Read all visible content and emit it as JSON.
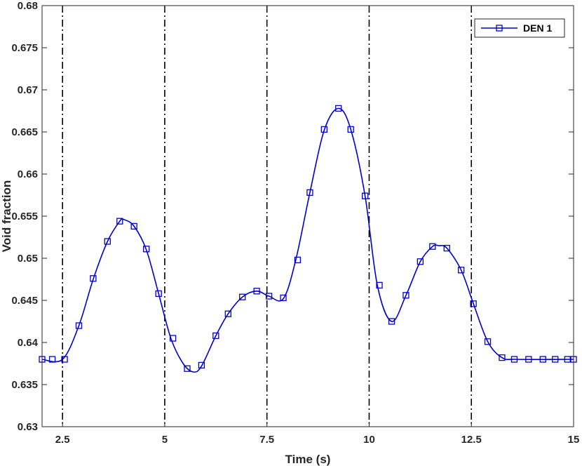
{
  "chart_data": {
    "type": "line",
    "title": "",
    "xlabel": "Time (s)",
    "ylabel": "Void fraction",
    "xlim": [
      2,
      15
    ],
    "ylim": [
      0.63,
      0.68
    ],
    "xticks": [
      2.5,
      5,
      7.5,
      10,
      12.5,
      15
    ],
    "xtick_labels": [
      "2.5",
      "5",
      "7.5",
      "10",
      "12.5",
      "15"
    ],
    "yticks": [
      0.63,
      0.635,
      0.64,
      0.645,
      0.65,
      0.655,
      0.66,
      0.665,
      0.67,
      0.675,
      0.68
    ],
    "ytick_labels": [
      "0.63",
      "0.635",
      "0.64",
      "0.645",
      "0.65",
      "0.655",
      "0.66",
      "0.665",
      "0.67",
      "0.675",
      "0.68"
    ],
    "grid": false,
    "legend_position": "top-right",
    "vertical_lines": {
      "x": [
        2.5,
        5,
        7.5,
        10,
        12.5
      ],
      "style": "dash-dot",
      "color": "#000000"
    },
    "series": [
      {
        "name": "DEN 1",
        "color": "#0000cc",
        "marker": "square",
        "curve": [
          [
            2.0,
            0.638
          ],
          [
            2.5,
            0.638
          ],
          [
            2.9,
            0.642
          ],
          [
            3.25,
            0.6475
          ],
          [
            3.6,
            0.652
          ],
          [
            3.9,
            0.6544
          ],
          [
            4.0,
            0.6546
          ],
          [
            4.25,
            0.6538
          ],
          [
            4.55,
            0.651
          ],
          [
            4.85,
            0.6458
          ],
          [
            5.15,
            0.6405
          ],
          [
            5.45,
            0.6375
          ],
          [
            5.7,
            0.6365
          ],
          [
            5.9,
            0.6372
          ],
          [
            6.25,
            0.6408
          ],
          [
            6.55,
            0.6434
          ],
          [
            6.9,
            0.6454
          ],
          [
            7.25,
            0.6461
          ],
          [
            7.55,
            0.6455
          ],
          [
            7.9,
            0.6452
          ],
          [
            8.2,
            0.6497
          ],
          [
            8.55,
            0.6578
          ],
          [
            8.9,
            0.6652
          ],
          [
            9.25,
            0.6678
          ],
          [
            9.55,
            0.6653
          ],
          [
            9.9,
            0.6574
          ],
          [
            10.2,
            0.6468
          ],
          [
            10.55,
            0.6425
          ],
          [
            10.9,
            0.6456
          ],
          [
            11.25,
            0.6496
          ],
          [
            11.55,
            0.6514
          ],
          [
            11.7,
            0.6515
          ],
          [
            11.9,
            0.6512
          ],
          [
            12.25,
            0.6486
          ],
          [
            12.55,
            0.6446
          ],
          [
            12.9,
            0.6401
          ],
          [
            13.25,
            0.6382
          ],
          [
            13.6,
            0.638
          ],
          [
            15.0,
            0.638
          ]
        ],
        "markers": [
          [
            2.0,
            0.638
          ],
          [
            2.25,
            0.638
          ],
          [
            2.55,
            0.638
          ],
          [
            2.9,
            0.642
          ],
          [
            3.25,
            0.6476
          ],
          [
            3.6,
            0.652
          ],
          [
            3.9,
            0.6544
          ],
          [
            4.25,
            0.6538
          ],
          [
            4.55,
            0.6511
          ],
          [
            4.85,
            0.6458
          ],
          [
            5.2,
            0.6405
          ],
          [
            5.55,
            0.6369
          ],
          [
            5.9,
            0.6373
          ],
          [
            6.25,
            0.6408
          ],
          [
            6.55,
            0.6434
          ],
          [
            6.9,
            0.6454
          ],
          [
            7.25,
            0.6461
          ],
          [
            7.55,
            0.6455
          ],
          [
            7.9,
            0.6453
          ],
          [
            8.25,
            0.6498
          ],
          [
            8.55,
            0.6578
          ],
          [
            8.9,
            0.6653
          ],
          [
            9.25,
            0.6678
          ],
          [
            9.55,
            0.6653
          ],
          [
            9.9,
            0.6574
          ],
          [
            10.25,
            0.6468
          ],
          [
            10.55,
            0.6425
          ],
          [
            10.9,
            0.6456
          ],
          [
            11.25,
            0.6496
          ],
          [
            11.55,
            0.6514
          ],
          [
            11.9,
            0.6512
          ],
          [
            12.25,
            0.6486
          ],
          [
            12.55,
            0.6446
          ],
          [
            12.9,
            0.6401
          ],
          [
            13.25,
            0.6382
          ],
          [
            13.55,
            0.638
          ],
          [
            13.9,
            0.638
          ],
          [
            14.25,
            0.638
          ],
          [
            14.55,
            0.638
          ],
          [
            14.85,
            0.638
          ],
          [
            15.0,
            0.638
          ]
        ]
      }
    ]
  }
}
